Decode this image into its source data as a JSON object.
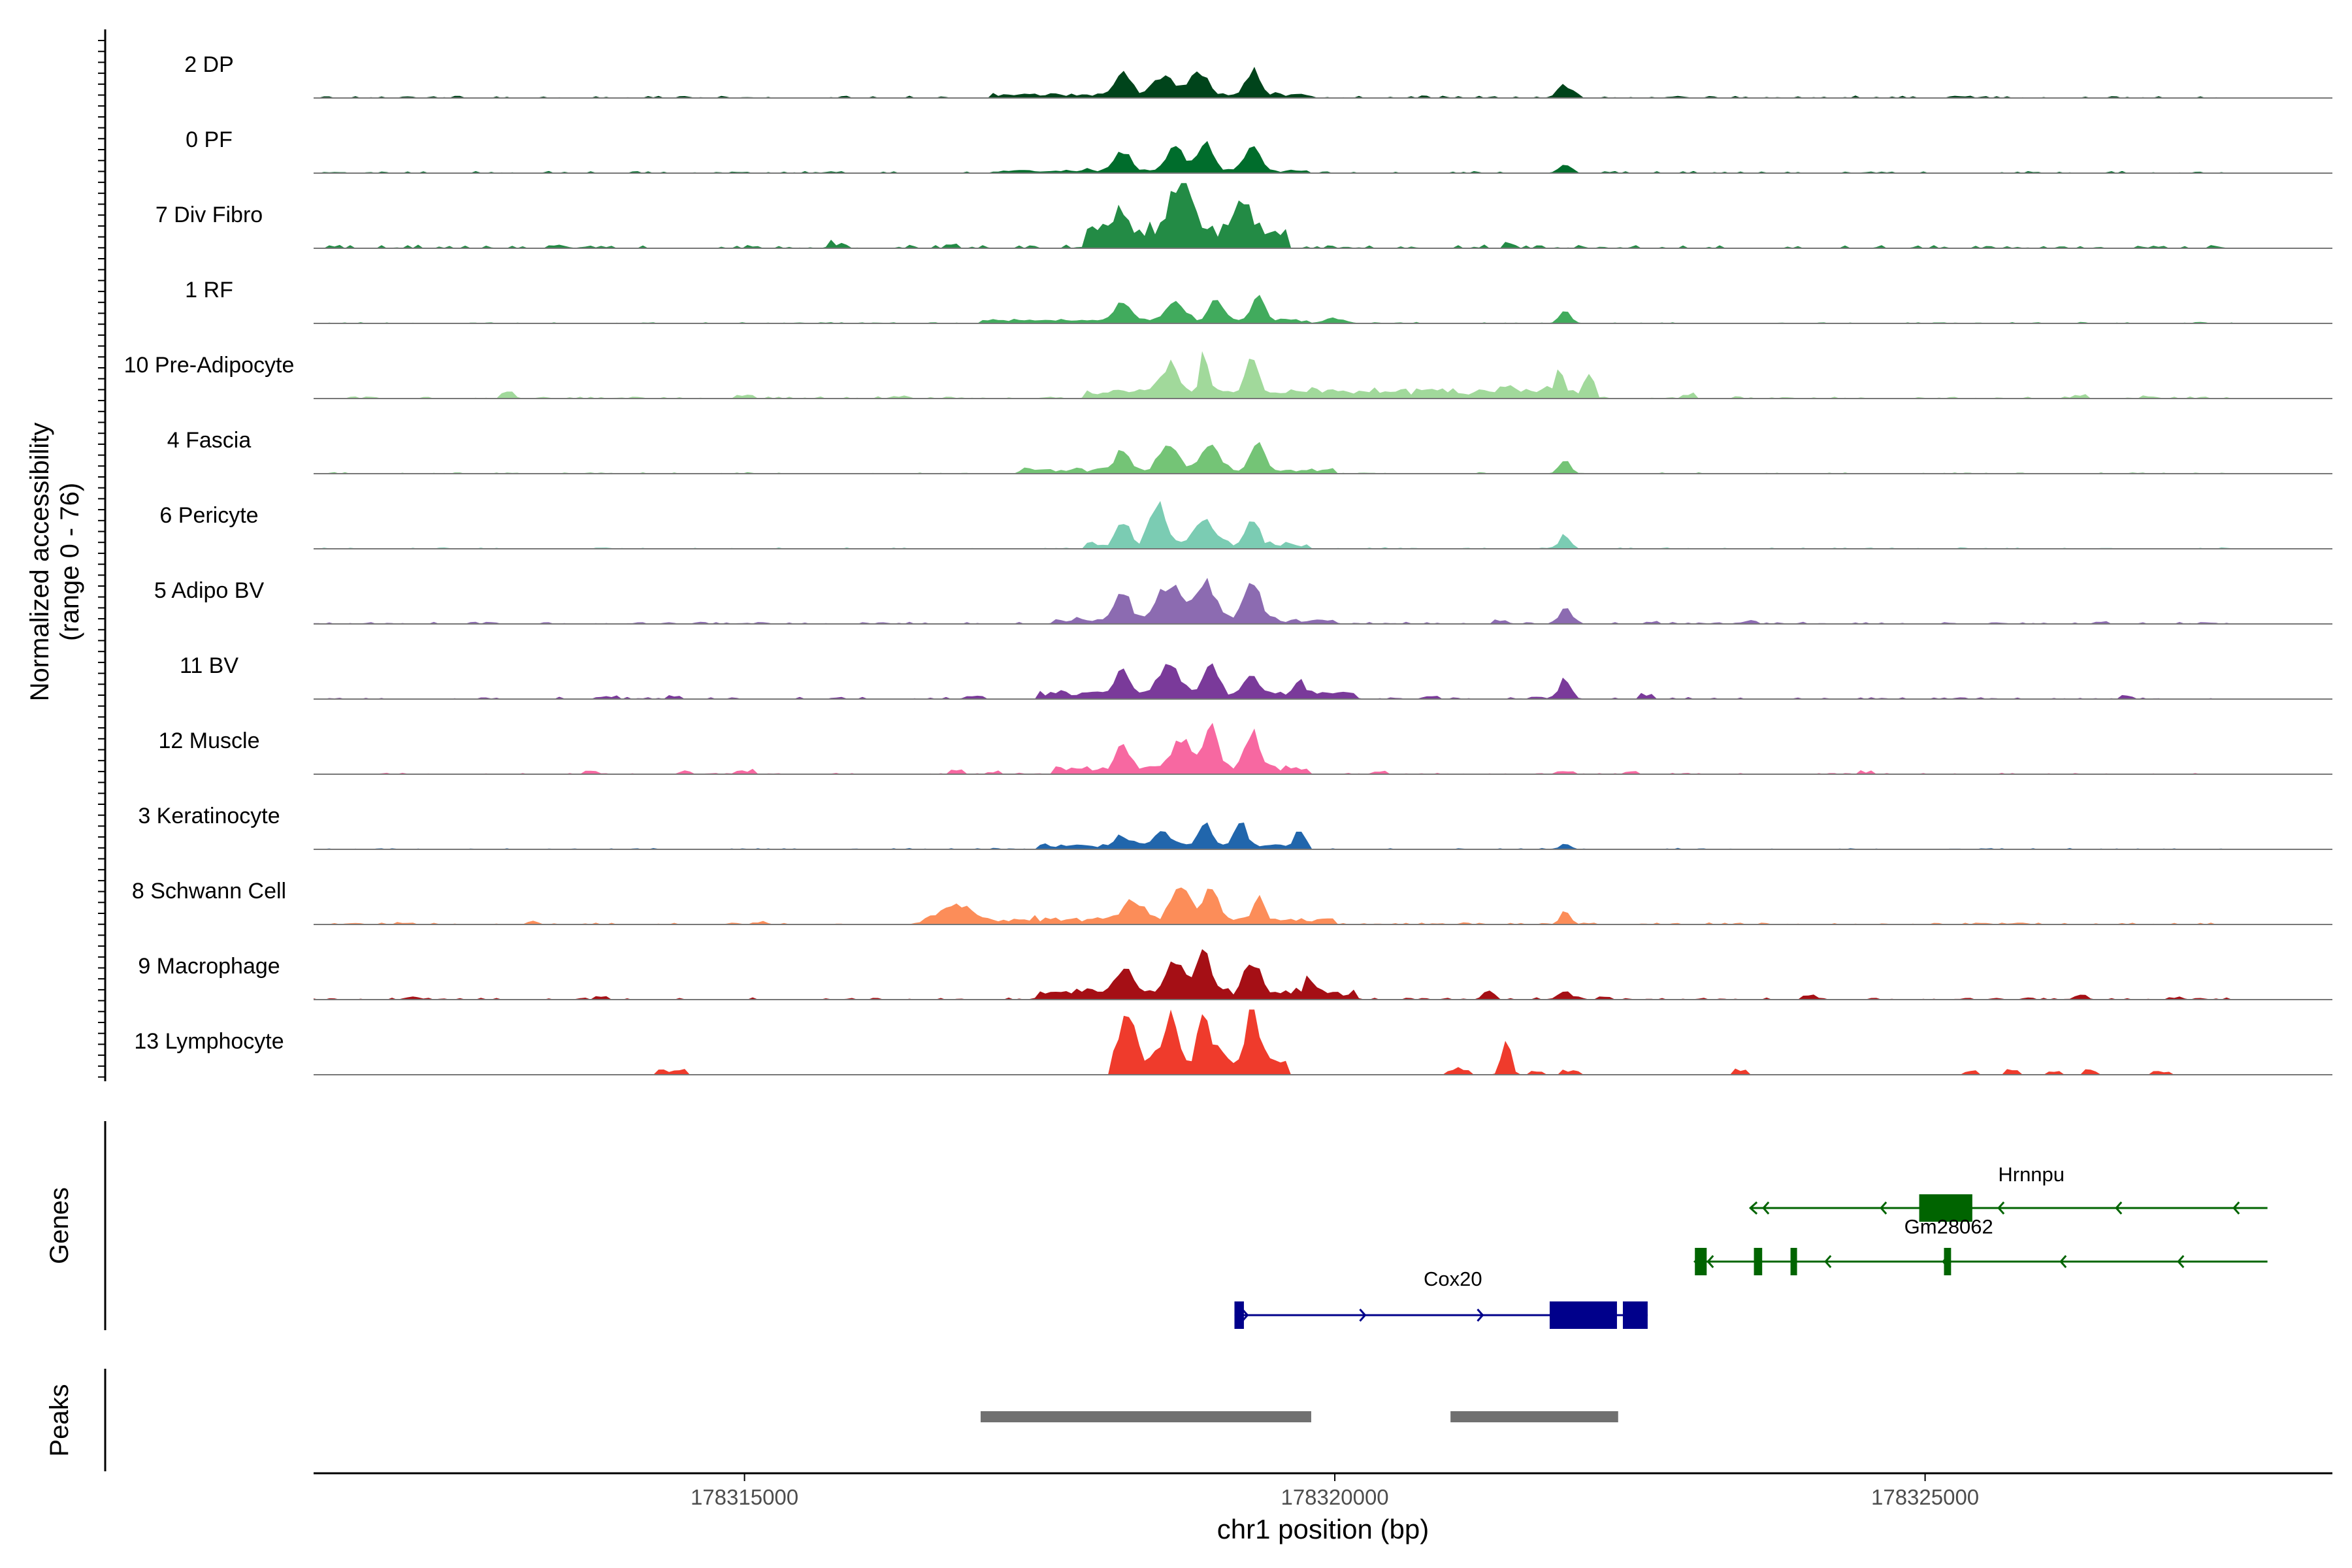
{
  "chart_data": {
    "type": "area",
    "title": "",
    "ylabel_line1": "Normalized accessibility",
    "ylabel_line2": "(range 0 - 76)",
    "y_range": [
      0,
      76
    ],
    "xlabel": "chr1 position (bp)",
    "xlim": [
      178311350,
      178328450
    ],
    "x_ticks": [
      {
        "value": 178315000,
        "label": "178315000"
      },
      {
        "value": 178320000,
        "label": "178320000"
      },
      {
        "value": 178325000,
        "label": "178325000"
      }
    ],
    "tracks": [
      {
        "name": "2 DP",
        "color": "#00441b",
        "peaks": [
          [
            178318200,
            0.35,
            90
          ],
          [
            178318550,
            0.28,
            120
          ],
          [
            178318850,
            0.4,
            90
          ],
          [
            178319300,
            0.38,
            80
          ],
          [
            178321950,
            0.2,
            80
          ]
        ],
        "base": 0.035,
        "fill": [
          [
            178317100,
            178319800,
            0.06
          ]
        ],
        "spots": [],
        "seed": 1
      },
      {
        "name": "0 PF",
        "color": "#006d2c",
        "peaks": [
          [
            178318200,
            0.3,
            90
          ],
          [
            178318650,
            0.35,
            110
          ],
          [
            178318900,
            0.4,
            90
          ],
          [
            178319300,
            0.38,
            90
          ],
          [
            178321950,
            0.15,
            70
          ]
        ],
        "base": 0.03,
        "fill": [
          [
            178317100,
            178319800,
            0.05
          ]
        ],
        "spots": [],
        "seed": 2
      },
      {
        "name": "7 Div Fibro",
        "color": "#238b45",
        "peaks": [
          [
            178318200,
            0.35,
            80
          ],
          [
            178318700,
            0.75,
            120
          ],
          [
            178319200,
            0.65,
            90
          ]
        ],
        "base": 0.05,
        "fill": [
          [
            178317900,
            178319600,
            0.35
          ]
        ],
        "spots": [
          [
            178313400,
            0.08
          ],
          [
            178315800,
            0.07
          ],
          [
            178316750,
            0.07
          ],
          [
            178321500,
            0.05
          ]
        ],
        "seed": 3
      },
      {
        "name": "1 RF",
        "color": "#41ab5d",
        "peaks": [
          [
            178318200,
            0.3,
            90
          ],
          [
            178318650,
            0.35,
            100
          ],
          [
            178319000,
            0.35,
            80
          ],
          [
            178319350,
            0.38,
            80
          ],
          [
            178320000,
            0.08,
            120
          ],
          [
            178321950,
            0.17,
            70
          ]
        ],
        "base": 0.02,
        "fill": [
          [
            178317000,
            178319800,
            0.06
          ]
        ],
        "spots": [],
        "seed": 4
      },
      {
        "name": "10 Pre-Adipocyte",
        "color": "#a1d99b",
        "peaks": [
          [
            178318600,
            0.45,
            90
          ],
          [
            178318900,
            0.6,
            50
          ],
          [
            178319300,
            0.55,
            60
          ],
          [
            178321900,
            0.25,
            60
          ],
          [
            178322150,
            0.22,
            50
          ]
        ],
        "base": 0.03,
        "fill": [
          [
            178317900,
            178322200,
            0.15
          ]
        ],
        "spots": [
          [
            178313000,
            0.12
          ],
          [
            178315000,
            0.05
          ],
          [
            178316300,
            0.05
          ],
          [
            178321450,
            0.1
          ],
          [
            178323000,
            0.08
          ],
          [
            178326300,
            0.07
          ],
          [
            178326900,
            0.05
          ]
        ],
        "seed": 5
      },
      {
        "name": "4 Fascia",
        "color": "#74c476",
        "peaks": [
          [
            178318200,
            0.3,
            80
          ],
          [
            178318600,
            0.35,
            110
          ],
          [
            178318950,
            0.4,
            110
          ],
          [
            178319350,
            0.38,
            80
          ],
          [
            178321950,
            0.2,
            70
          ]
        ],
        "base": 0.02,
        "fill": [
          [
            178317300,
            178320000,
            0.08
          ]
        ],
        "spots": [],
        "seed": 6
      },
      {
        "name": "6 Pericyte",
        "color": "#7bccb3",
        "peaks": [
          [
            178318200,
            0.4,
            70
          ],
          [
            178318500,
            0.6,
            90
          ],
          [
            178318900,
            0.45,
            110
          ],
          [
            178319300,
            0.35,
            70
          ],
          [
            178321950,
            0.22,
            60
          ]
        ],
        "base": 0.02,
        "fill": [
          [
            178317900,
            178319800,
            0.1
          ]
        ],
        "spots": [],
        "seed": 7
      },
      {
        "name": "5 Adipo BV",
        "color": "#8c6bb1",
        "peaks": [
          [
            178318200,
            0.45,
            90
          ],
          [
            178318600,
            0.58,
            130
          ],
          [
            178318900,
            0.62,
            120
          ],
          [
            178319300,
            0.58,
            100
          ],
          [
            178321950,
            0.25,
            70
          ]
        ],
        "base": 0.03,
        "fill": [
          [
            178317600,
            178320000,
            0.08
          ]
        ],
        "spots": [
          [
            178321400,
            0.05
          ],
          [
            178322700,
            0.04
          ],
          [
            178323500,
            0.04
          ],
          [
            178326500,
            0.04
          ]
        ],
        "seed": 8
      },
      {
        "name": "11 BV",
        "color": "#7a3a9a",
        "peaks": [
          [
            178318200,
            0.45,
            80
          ],
          [
            178318600,
            0.4,
            120
          ],
          [
            178318950,
            0.45,
            90
          ],
          [
            178319300,
            0.3,
            80
          ],
          [
            178319700,
            0.2,
            70
          ],
          [
            178321950,
            0.3,
            70
          ]
        ],
        "base": 0.03,
        "fill": [
          [
            178317500,
            178320200,
            0.12
          ]
        ],
        "spots": [
          [
            178313850,
            0.05
          ],
          [
            178314400,
            0.05
          ],
          [
            178316950,
            0.05
          ],
          [
            178320800,
            0.05
          ],
          [
            178321700,
            0.05
          ],
          [
            178322650,
            0.07
          ],
          [
            178326700,
            0.07
          ]
        ],
        "seed": 9
      },
      {
        "name": "12 Muscle",
        "color": "#f768a1",
        "peaks": [
          [
            178318200,
            0.4,
            80
          ],
          [
            178318700,
            0.45,
            100
          ],
          [
            178318950,
            0.6,
            90
          ],
          [
            178319300,
            0.55,
            80
          ]
        ],
        "base": 0.02,
        "fill": [
          [
            178317600,
            178319800,
            0.12
          ]
        ],
        "spots": [
          [
            178313700,
            0.06
          ],
          [
            178314500,
            0.05
          ],
          [
            178315000,
            0.06
          ],
          [
            178316800,
            0.07
          ],
          [
            178317100,
            0.05
          ],
          [
            178320400,
            0.05
          ],
          [
            178321950,
            0.07
          ],
          [
            178322500,
            0.05
          ],
          [
            178324500,
            0.05
          ]
        ],
        "seed": 10
      },
      {
        "name": "3 Keratinocyte",
        "color": "#2166ac",
        "peaks": [
          [
            178318200,
            0.15,
            80
          ],
          [
            178318550,
            0.22,
            90
          ],
          [
            178318900,
            0.4,
            60
          ],
          [
            178319200,
            0.38,
            70
          ],
          [
            178319700,
            0.22,
            60
          ],
          [
            178321950,
            0.08,
            60
          ]
        ],
        "base": 0.02,
        "fill": [
          [
            178317500,
            178319800,
            0.08
          ]
        ],
        "spots": [],
        "seed": 11
      },
      {
        "name": "8 Schwann Cell",
        "color": "#fc8d59",
        "peaks": [
          [
            178316800,
            0.25,
            150
          ],
          [
            178318300,
            0.3,
            120
          ],
          [
            178318700,
            0.55,
            100
          ],
          [
            178318950,
            0.6,
            80
          ],
          [
            178319350,
            0.3,
            70
          ],
          [
            178321950,
            0.2,
            60
          ]
        ],
        "base": 0.03,
        "fill": [
          [
            178316500,
            178320000,
            0.1
          ]
        ],
        "spots": [
          [
            178312100,
            0.04
          ],
          [
            178313200,
            0.05
          ],
          [
            178315100,
            0.04
          ]
        ],
        "seed": 12
      },
      {
        "name": "9 Macrophage",
        "color": "#a50f15",
        "peaks": [
          [
            178318200,
            0.35,
            100
          ],
          [
            178318650,
            0.5,
            110
          ],
          [
            178318900,
            0.62,
            80
          ],
          [
            178319300,
            0.45,
            90
          ],
          [
            178319800,
            0.2,
            70
          ],
          [
            178321300,
            0.15,
            60
          ],
          [
            178321950,
            0.12,
            80
          ]
        ],
        "base": 0.03,
        "fill": [
          [
            178317500,
            178320200,
            0.15
          ]
        ],
        "spots": [
          [
            178312200,
            0.04
          ],
          [
            178313800,
            0.05
          ],
          [
            178322300,
            0.05
          ],
          [
            178324000,
            0.05
          ],
          [
            178326300,
            0.05
          ],
          [
            178327100,
            0.05
          ]
        ],
        "seed": 13
      },
      {
        "name": "13 Lymphocyte",
        "color": "#ef3b2c",
        "peaks": [
          [
            178318250,
            0.6,
            60
          ],
          [
            178318600,
            0.8,
            60
          ],
          [
            178318900,
            0.7,
            60
          ],
          [
            178319300,
            0.8,
            60
          ],
          [
            178321450,
            0.62,
            50
          ]
        ],
        "base": 0.0,
        "fill": [
          [
            178318100,
            178319600,
            0.45
          ]
        ],
        "spots": [
          [
            178314300,
            0.08
          ],
          [
            178314450,
            0.08
          ],
          [
            178321100,
            0.08
          ],
          [
            178321700,
            0.08
          ],
          [
            178322000,
            0.08
          ],
          [
            178321000,
            0.08
          ],
          [
            178323450,
            0.1
          ],
          [
            178325400,
            0.08
          ],
          [
            178325750,
            0.08
          ],
          [
            178326100,
            0.08
          ],
          [
            178326400,
            0.08
          ],
          [
            178327000,
            0.08
          ]
        ],
        "seed": 14
      }
    ],
    "genes_label": "Genes",
    "genes": [
      {
        "name": "Hrnnpu",
        "color": "#006400",
        "strand": "-",
        "start": 178323520,
        "end": 178327900,
        "row": 0,
        "exons": [
          [
            178324950,
            178325400
          ]
        ]
      },
      {
        "name": "Gm28062",
        "color": "#006400",
        "strand": "-",
        "start": 178323050,
        "end": 178327900,
        "row": 1,
        "exons": [
          [
            178323050,
            178323150
          ],
          [
            178323550,
            178323620
          ],
          [
            178323860,
            178323900
          ],
          [
            178325160,
            178325220
          ]
        ]
      },
      {
        "name": "Cox20",
        "color": "#00008b",
        "strand": "+",
        "start": 178319150,
        "end": 178322650,
        "row": 2,
        "exons": [
          [
            178319150,
            178319230
          ],
          [
            178321820,
            178322390
          ],
          [
            178322440,
            178322650
          ]
        ]
      }
    ],
    "peaks_label": "Peaks",
    "peak_regions": [
      [
        178317000,
        178319800
      ],
      [
        178320980,
        178322400
      ]
    ]
  }
}
